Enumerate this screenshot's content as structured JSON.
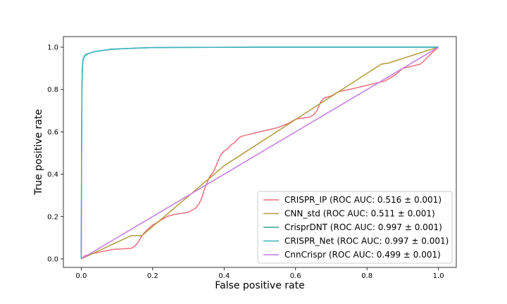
{
  "chart_data": {
    "type": "line",
    "title": "",
    "xlabel": "False positive rate",
    "ylabel": "True positive rate",
    "xlim": [
      -0.05,
      1.05
    ],
    "ylim": [
      -0.04,
      1.05
    ],
    "xticks": [
      0.0,
      0.2,
      0.4,
      0.6,
      0.8,
      1.0
    ],
    "yticks": [
      0.0,
      0.2,
      0.4,
      0.6,
      0.8,
      1.0
    ],
    "xtick_labels": [
      "0.0",
      "0.2",
      "0.4",
      "0.6",
      "0.8",
      "1.0"
    ],
    "ytick_labels": [
      "0.0",
      "0.2",
      "0.4",
      "0.6",
      "0.8",
      "1.0"
    ],
    "grid": false,
    "legend_position": "bottom-right",
    "series": [
      {
        "name": "CRISPR_IP (ROC AUC: 0.516 ± 0.001)",
        "color": "#f0707e",
        "x": [
          0.0,
          0.01,
          0.03,
          0.06,
          0.09,
          0.14,
          0.15,
          0.16,
          0.17,
          0.18,
          0.2,
          0.22,
          0.24,
          0.26,
          0.28,
          0.3,
          0.32,
          0.33,
          0.34,
          0.345,
          0.35,
          0.355,
          0.36,
          0.365,
          0.37,
          0.375,
          0.38,
          0.385,
          0.39,
          0.395,
          0.4,
          0.41,
          0.42,
          0.43,
          0.44,
          0.45,
          0.5,
          0.55,
          0.58,
          0.6,
          0.62,
          0.64,
          0.65,
          0.66,
          0.67,
          0.68,
          0.7,
          0.72,
          0.75,
          0.8,
          0.85,
          0.88,
          0.9,
          0.95,
          0.98,
          1.0
        ],
        "y": [
          0.0,
          0.015,
          0.025,
          0.035,
          0.045,
          0.05,
          0.06,
          0.08,
          0.11,
          0.13,
          0.16,
          0.18,
          0.2,
          0.21,
          0.215,
          0.22,
          0.24,
          0.26,
          0.3,
          0.33,
          0.35,
          0.37,
          0.39,
          0.4,
          0.41,
          0.43,
          0.45,
          0.47,
          0.49,
          0.5,
          0.51,
          0.52,
          0.54,
          0.55,
          0.57,
          0.58,
          0.6,
          0.62,
          0.64,
          0.66,
          0.665,
          0.67,
          0.68,
          0.7,
          0.74,
          0.76,
          0.77,
          0.79,
          0.8,
          0.82,
          0.84,
          0.87,
          0.9,
          0.92,
          0.97,
          1.0
        ]
      },
      {
        "name": "CNN_std (ROC AUC: 0.511 ± 0.001)",
        "color": "#b39a3a",
        "x": [
          0.0,
          0.14,
          0.17,
          0.4,
          0.84,
          0.86,
          0.98,
          1.0
        ],
        "y": [
          0.0,
          0.11,
          0.11,
          0.44,
          0.92,
          0.925,
          0.99,
          1.0
        ],
        "note_omitted": ""
      },
      {
        "name": "CrisprDNT (ROC AUC: 0.997 ± 0.001)",
        "color": "#33a38f",
        "x": [
          0.0,
          0.001,
          0.002,
          0.003,
          0.005,
          0.008,
          0.012,
          0.02,
          0.03,
          0.04,
          0.06,
          0.08,
          0.1,
          0.15,
          0.2,
          0.3,
          0.5,
          0.8,
          1.0
        ],
        "y": [
          0.0,
          0.5,
          0.8,
          0.9,
          0.94,
          0.955,
          0.965,
          0.97,
          0.975,
          0.98,
          0.985,
          0.99,
          0.992,
          0.995,
          0.998,
          0.999,
          1.0,
          1.0,
          1.0
        ]
      },
      {
        "name": "CRISPR_Net (ROC AUC: 0.997 ± 0.001)",
        "color": "#3cb1c0",
        "x": [
          0.0,
          0.001,
          0.002,
          0.004,
          0.006,
          0.01,
          0.015,
          0.025,
          0.035,
          0.05,
          0.07,
          0.09,
          0.12,
          0.16,
          0.2,
          0.3,
          0.5,
          0.8,
          1.0
        ],
        "y": [
          0.0,
          0.55,
          0.82,
          0.92,
          0.945,
          0.958,
          0.966,
          0.972,
          0.978,
          0.982,
          0.987,
          0.99,
          0.993,
          0.996,
          0.998,
          0.999,
          1.0,
          1.0,
          1.0
        ]
      },
      {
        "name": "CnnCrispr (ROC AUC: 0.499 ± 0.001)",
        "color": "#c77ce6",
        "x": [
          0.0,
          0.2,
          0.4,
          0.6,
          0.8,
          1.0
        ],
        "y": [
          0.0,
          0.2,
          0.4,
          0.6,
          0.8,
          1.0
        ]
      }
    ],
    "diagonal": {
      "color": "#3b5ba8",
      "dashed": true
    }
  }
}
